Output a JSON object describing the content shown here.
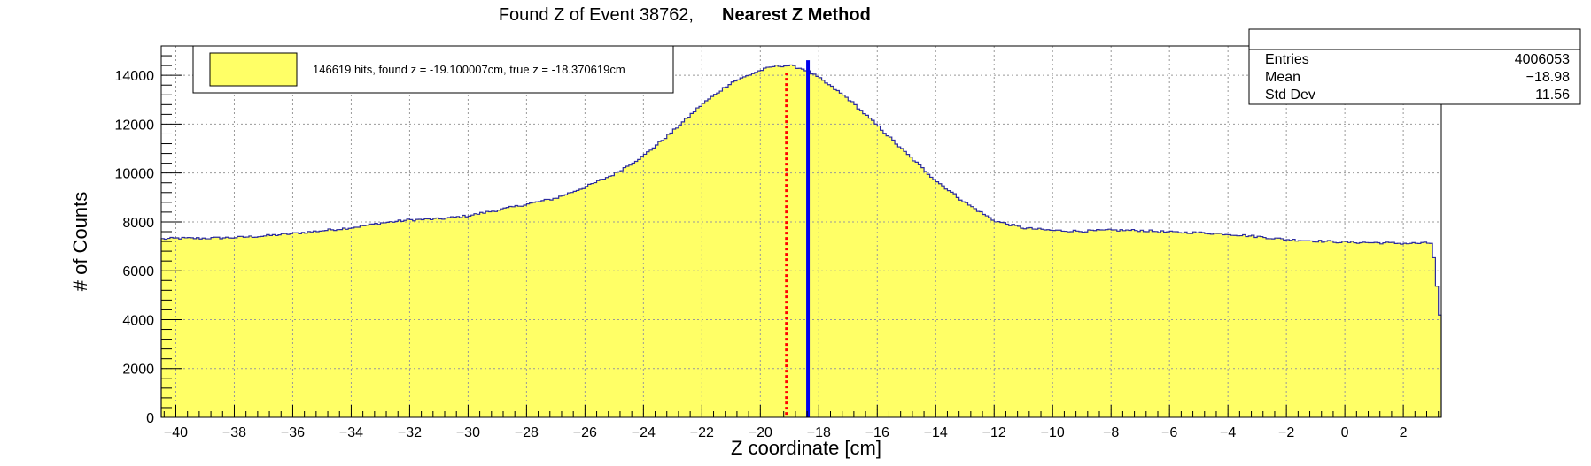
{
  "title": {
    "prefix": "Found Z of Event 38762,",
    "method": "Nearest Z Method"
  },
  "stats_box": {
    "rows": [
      {
        "label": "Entries",
        "value": "4006053"
      },
      {
        "label": "Mean",
        "value": "−18.98"
      },
      {
        "label": "Std Dev",
        "value": "11.56"
      }
    ]
  },
  "legend": {
    "entry": "146619 hits, found z = -19.100007cm, true z = -18.370619cm"
  },
  "colors": {
    "fill": "#ffff66",
    "line": "#2b2b9f",
    "found_z": "#ff0000",
    "true_z": "#0000ee"
  },
  "chart_data": {
    "type": "bar",
    "histogram": true,
    "xlabel": "Z coordinate [cm]",
    "ylabel": "# of Counts",
    "xlim": [
      -40.5,
      3.3
    ],
    "ylim": [
      0,
      15200
    ],
    "grid": true,
    "legend_position": "top-left",
    "stats_position": "top-right",
    "x_ticks": [
      -40,
      -38,
      -36,
      -34,
      -32,
      -30,
      -28,
      -26,
      -24,
      -22,
      -20,
      -18,
      -16,
      -14,
      -12,
      -10,
      -8,
      -6,
      -4,
      -2,
      0,
      2
    ],
    "x_tick_labels": [
      "−40",
      "−38",
      "−36",
      "−34",
      "−32",
      "−30",
      "−28",
      "−26",
      "−24",
      "−22",
      "−20",
      "−18",
      "−16",
      "−14",
      "−12",
      "−10",
      "−8",
      "−6",
      "−4",
      "−2",
      "0",
      "2"
    ],
    "y_ticks": [
      0,
      2000,
      4000,
      6000,
      8000,
      10000,
      12000,
      14000
    ],
    "y_tick_labels": [
      "0",
      "2000",
      "4000",
      "6000",
      "8000",
      "10000",
      "12000",
      "14000"
    ],
    "profile": {
      "x": [
        -40.5,
        -40,
        -39,
        -38,
        -37,
        -36,
        -35,
        -34,
        -33,
        -32,
        -31,
        -30,
        -29,
        -28,
        -27,
        -26,
        -25,
        -24,
        -23,
        -22,
        -21,
        -20,
        -19.5,
        -19,
        -18.5,
        -18,
        -17,
        -16,
        -15,
        -14,
        -13,
        -12,
        -11,
        -10,
        -9,
        -8,
        -7,
        -6,
        -5,
        -4,
        -3,
        -2,
        -1,
        0,
        1,
        2,
        3,
        3.3
      ],
      "y": [
        7300,
        7330,
        7330,
        7360,
        7420,
        7520,
        7640,
        7760,
        7950,
        8080,
        8120,
        8250,
        8480,
        8720,
        8970,
        9420,
        9950,
        10700,
        11700,
        12800,
        13700,
        14200,
        14380,
        14400,
        14250,
        13900,
        13050,
        11950,
        10800,
        9700,
        8800,
        8050,
        7750,
        7650,
        7620,
        7660,
        7650,
        7580,
        7560,
        7500,
        7400,
        7280,
        7220,
        7170,
        7150,
        7120,
        7130,
        3600
      ]
    },
    "bin_width": 0.1,
    "series": [
      {
        "name": "146619 hits, found z = -19.100007cm, true z = -18.370619cm",
        "type": "histogram"
      }
    ],
    "markers": [
      {
        "x": -19.100007,
        "style": "dotted",
        "color": "#ff0000"
      },
      {
        "x": -18.370619,
        "style": "solid",
        "color": "#0000ee"
      }
    ]
  }
}
